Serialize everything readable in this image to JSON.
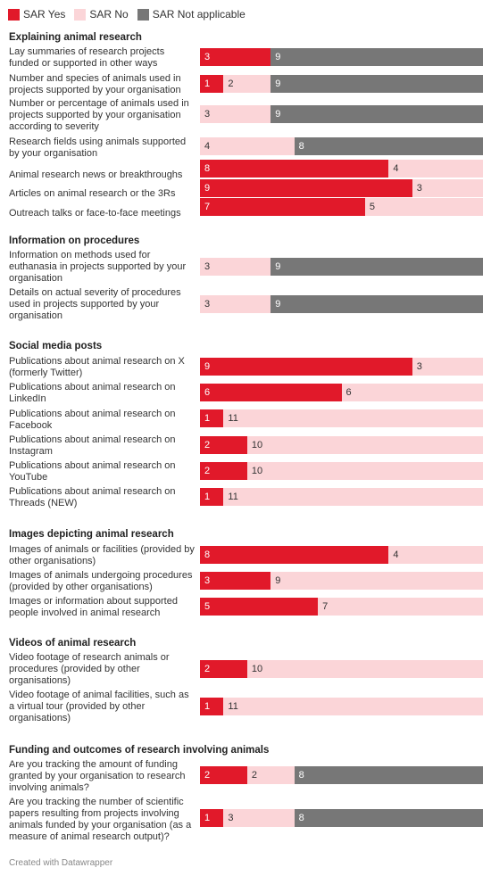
{
  "legend": [
    {
      "label": "SAR Yes",
      "color": "#e1192a"
    },
    {
      "label": "SAR No",
      "color": "#fbd5d8"
    },
    {
      "label": "SAR Not applicable",
      "color": "#777777"
    }
  ],
  "chart_data": {
    "type": "bar",
    "orientation": "horizontal-stacked",
    "series": [
      "SAR Yes",
      "SAR No",
      "SAR Not applicable"
    ],
    "total": 12,
    "sections": [
      {
        "title": "Explaining animal research",
        "rows": [
          {
            "label": "Lay summaries of research projects funded or supported in other ways",
            "values": [
              3,
              0,
              9
            ]
          },
          {
            "label": "Number and species of animals used in projects supported by your organisation",
            "values": [
              1,
              2,
              9
            ]
          },
          {
            "label": "Number or percentage of animals used in projects supported by your organisation according to severity",
            "values": [
              0,
              3,
              9
            ]
          },
          {
            "label": "Research fields using animals supported by your organisation",
            "values": [
              0,
              4,
              8
            ]
          },
          {
            "label": "Animal research news or breakthroughs",
            "values": [
              8,
              4,
              0
            ]
          },
          {
            "label": "Articles on animal research or the 3Rs",
            "values": [
              9,
              3,
              0
            ]
          },
          {
            "label": "Outreach talks or face-to-face meetings",
            "values": [
              7,
              5,
              0
            ]
          }
        ]
      },
      {
        "title": "Information on procedures",
        "rows": [
          {
            "label": "Information on methods used for euthanasia in projects supported by your organisation",
            "values": [
              0,
              3,
              9
            ]
          },
          {
            "label": "Details on actual severity of procedures used in projects supported by your organisation",
            "values": [
              0,
              3,
              9
            ]
          }
        ]
      },
      {
        "title": "Social media posts",
        "rows": [
          {
            "label": "Publications about animal research on X (formerly Twitter)",
            "values": [
              9,
              3,
              0
            ]
          },
          {
            "label": "Publications about animal research on LinkedIn",
            "values": [
              6,
              6,
              0
            ]
          },
          {
            "label": "Publications about animal research on Facebook",
            "values": [
              1,
              11,
              0
            ]
          },
          {
            "label": "Publications about animal research on Instagram",
            "values": [
              2,
              10,
              0
            ]
          },
          {
            "label": "Publications about animal research on YouTube",
            "values": [
              2,
              10,
              0
            ]
          },
          {
            "label": "Publications about animal research on Threads (NEW)",
            "values": [
              1,
              11,
              0
            ]
          }
        ]
      },
      {
        "title": "Images depicting animal research",
        "rows": [
          {
            "label": "Images of animals or facilities (provided by other organisations)",
            "values": [
              8,
              4,
              0
            ]
          },
          {
            "label": "Images of animals undergoing procedures (provided by other organisations)",
            "values": [
              3,
              9,
              0
            ]
          },
          {
            "label": "Images or information about supported people involved in animal research",
            "values": [
              5,
              7,
              0
            ]
          }
        ]
      },
      {
        "title": "Videos of animal research",
        "rows": [
          {
            "label": "Video footage of research animals or procedures (provided by other organisations)",
            "values": [
              2,
              10,
              0
            ]
          },
          {
            "label": "Video footage of animal facilities, such as a virtual tour (provided by other organisations)",
            "values": [
              1,
              11,
              0
            ]
          }
        ]
      },
      {
        "title": "Funding and outcomes of research involving animals",
        "rows": [
          {
            "label": "Are you tracking the amount of funding granted by your organisation to research involving animals?",
            "values": [
              2,
              2,
              8
            ]
          },
          {
            "label": "Are you tracking the number of scientific papers resulting from projects involving animals funded by your organisation (as a measure of animal research output)?",
            "values": [
              1,
              3,
              8
            ]
          }
        ]
      }
    ]
  },
  "footer": "Created with Datawrapper"
}
